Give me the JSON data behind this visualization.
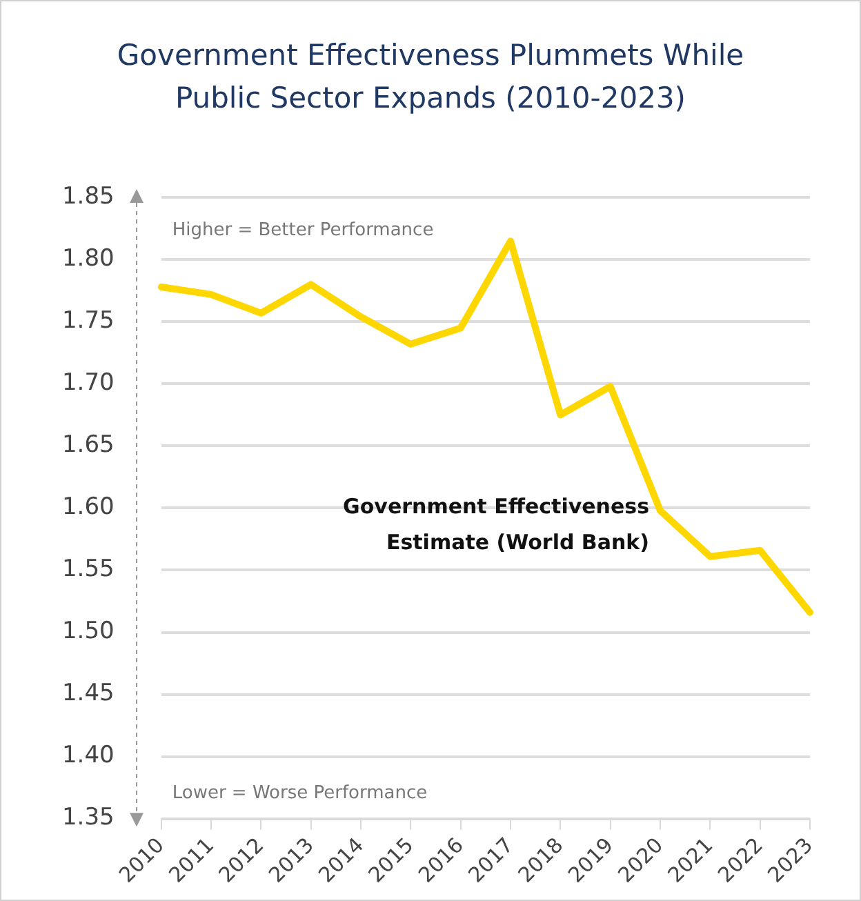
{
  "chart_data": {
    "type": "line",
    "title": "Government Effectiveness Plummets While Public Sector Expands (2010-2023)",
    "categories": [
      "2010",
      "2011",
      "2012",
      "2013",
      "2014",
      "2015",
      "2016",
      "2017",
      "2018",
      "2019",
      "2020",
      "2021",
      "2022",
      "2023"
    ],
    "series": [
      {
        "name": "Government Effectiveness Estimate (World Bank)",
        "color": "#ffd700",
        "values": [
          1.778,
          1.772,
          1.757,
          1.78,
          1.754,
          1.732,
          1.745,
          1.815,
          1.675,
          1.698,
          1.598,
          1.561,
          1.566,
          1.516
        ]
      }
    ],
    "ylim": [
      1.35,
      1.85
    ],
    "yticks": [
      1.35,
      {
        "value": 1.4,
        "label": "1.40"
      },
      1.45,
      {
        "value": 1.5,
        "label": "1.50"
      },
      1.55,
      {
        "value": 1.6,
        "label": "1.60"
      },
      1.65,
      {
        "value": 1.7,
        "label": "1.70"
      },
      1.75,
      {
        "value": 1.8,
        "label": "1.80"
      },
      1.85
    ],
    "grid": "y",
    "legend": false,
    "marker": "none",
    "line_style": "solid",
    "annotations": [
      "Higher = Better Performance",
      "Lower = Worse Performance"
    ]
  }
}
